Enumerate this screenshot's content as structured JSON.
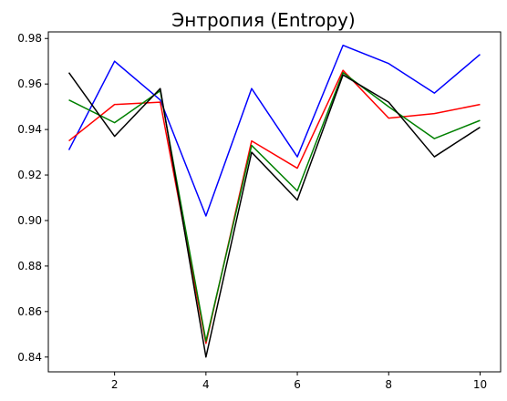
{
  "chart_data": {
    "type": "line",
    "title": "Энтропия (Entropy)",
    "xlabel": "",
    "ylabel": "",
    "xlim": [
      0.55,
      10.45
    ],
    "ylim": [
      0.8335,
      0.9829
    ],
    "xticks": [
      2,
      4,
      6,
      8,
      10
    ],
    "yticks": [
      0.84,
      0.86,
      0.88,
      0.9,
      0.92,
      0.94,
      0.96,
      0.98
    ],
    "ytick_labels": [
      "0.84",
      "0.86",
      "0.88",
      "0.90",
      "0.92",
      "0.94",
      "0.96",
      "0.98"
    ],
    "grid": false,
    "x": [
      1,
      2,
      3,
      4,
      5,
      6,
      7,
      8,
      9,
      10
    ],
    "series": [
      {
        "color": "#0000ff",
        "values": [
          0.931,
          0.97,
          0.953,
          0.902,
          0.958,
          0.928,
          0.977,
          0.969,
          0.956,
          0.973
        ]
      },
      {
        "color": "#ff0000",
        "values": [
          0.935,
          0.951,
          0.952,
          0.846,
          0.935,
          0.923,
          0.966,
          0.945,
          0.947,
          0.951
        ]
      },
      {
        "color": "#008000",
        "values": [
          0.953,
          0.943,
          0.957,
          0.847,
          0.933,
          0.913,
          0.965,
          0.95,
          0.936,
          0.944
        ]
      },
      {
        "color": "#000000",
        "values": [
          0.965,
          0.937,
          0.958,
          0.84,
          0.93,
          0.909,
          0.964,
          0.952,
          0.928,
          0.941
        ]
      }
    ]
  }
}
